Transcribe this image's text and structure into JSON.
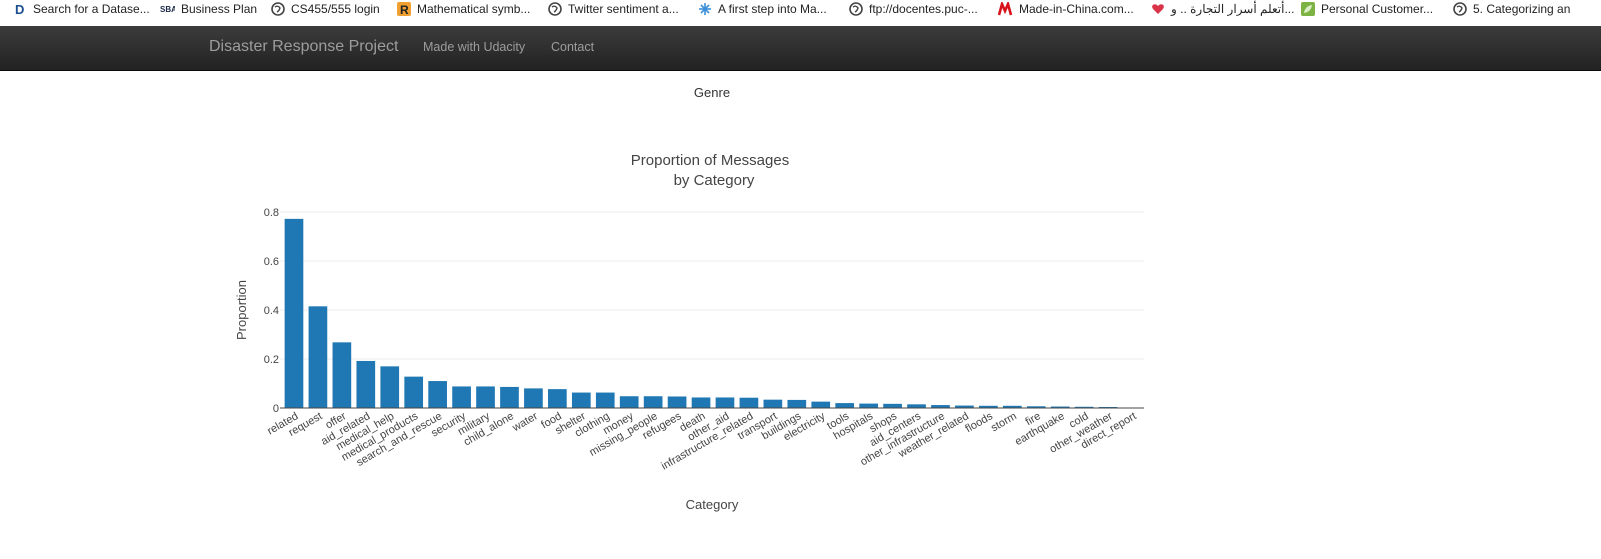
{
  "bookmarks": [
    {
      "icon": "d-icon",
      "label": "Search for a Datase..."
    },
    {
      "icon": "sba-icon",
      "label": "Business Plan"
    },
    {
      "icon": "globe-icon",
      "label": "CS455/555 login"
    },
    {
      "icon": "r-icon",
      "label": "Mathematical symb..."
    },
    {
      "icon": "globe-icon",
      "label": "Twitter sentiment a..."
    },
    {
      "icon": "snowflake-icon",
      "label": "A first step into Ma..."
    },
    {
      "icon": "globe-icon",
      "label": "ftp://docentes.puc-..."
    },
    {
      "icon": "made-in-china-icon",
      "label": "Made-in-China.com..."
    },
    {
      "icon": "heart-icon",
      "label": "أتعلم أسرار التجارة .. و..."
    },
    {
      "icon": "leaf-icon",
      "label": "Personal Customer..."
    },
    {
      "icon": "globe-icon",
      "label": "5. Categorizing an"
    }
  ],
  "navbar": {
    "brand": "Disaster Response Project",
    "links": [
      "Made with Udacity",
      "Contact"
    ]
  },
  "genre_heading": "Genre",
  "colors": {
    "bar": "#1f77b4",
    "navbar_text": "#9d9d9d",
    "grid": "#eeeeee"
  },
  "chart_data": {
    "type": "bar",
    "title": "Proportion of Messages",
    "subtitle": "by Category",
    "xlabel": "Category",
    "ylabel": "Proportion",
    "ylim": [
      0,
      0.8
    ],
    "yticks": [
      0,
      0.2,
      0.4,
      0.6,
      0.8
    ],
    "ytick_labels": [
      "0",
      "0.2",
      "0.4",
      "0.6",
      "0.8"
    ],
    "grid": true,
    "categories": [
      "related",
      "request",
      "offer",
      "aid_related",
      "medical_help",
      "medical_products",
      "search_and_rescue",
      "security",
      "military",
      "child_alone",
      "water",
      "food",
      "shelter",
      "clothing",
      "money",
      "missing_people",
      "refugees",
      "death",
      "other_aid",
      "infrastructure_related",
      "transport",
      "buildings",
      "electricity",
      "tools",
      "hospitals",
      "shops",
      "aid_centers",
      "other_infrastructure",
      "weather_related",
      "floods",
      "storm",
      "fire",
      "earthquake",
      "cold",
      "other_weather",
      "direct_report"
    ],
    "values": [
      0.772,
      0.415,
      0.268,
      0.192,
      0.17,
      0.128,
      0.11,
      0.088,
      0.088,
      0.086,
      0.08,
      0.077,
      0.063,
      0.063,
      0.048,
      0.048,
      0.047,
      0.043,
      0.043,
      0.042,
      0.034,
      0.033,
      0.026,
      0.02,
      0.018,
      0.017,
      0.015,
      0.012,
      0.01,
      0.009,
      0.009,
      0.007,
      0.006,
      0.005,
      0.004,
      0.002
    ]
  }
}
